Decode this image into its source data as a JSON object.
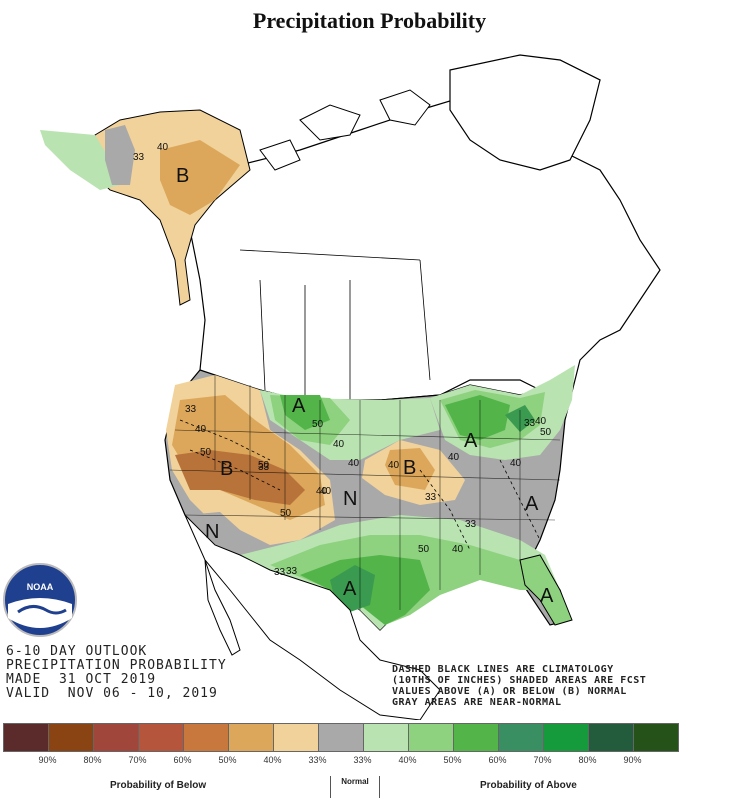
{
  "title": "Precipitation Probability",
  "outlook": {
    "line1": "6-10 DAY OUTLOOK",
    "line2": "PRECIPITATION PROBABILITY",
    "line3": "MADE  31 OCT 2019",
    "line4": "VALID  NOV 06 - 10, 2019"
  },
  "note": {
    "line1": "DASHED BLACK LINES ARE CLIMATOLOGY",
    "line2": "(10THS OF INCHES) SHADED AREAS ARE FCST",
    "line3": "VALUES ABOVE (A) OR BELOW (B) NORMAL",
    "line4": "GRAY AREAS ARE NEAR-NORMAL"
  },
  "logo_text": "NOAA",
  "map": {
    "category_labels": [
      "B",
      "B",
      "B",
      "N",
      "N",
      "A",
      "A",
      "A",
      "A",
      "A"
    ],
    "contour_labels": [
      "33",
      "40",
      "33",
      "40",
      "50",
      "50",
      "40",
      "50",
      "40",
      "40",
      "33",
      "33",
      "33",
      "50",
      "40",
      "40",
      "33",
      "40",
      "33",
      "50",
      "33",
      "40",
      "50",
      "40",
      "40"
    ],
    "colors": {
      "below_33": "#f1d29b",
      "below_40": "#dca75a",
      "below_50": "#b7733a",
      "near_normal": "#a9a9a9",
      "above_33": "#b9e3b1",
      "above_40": "#8ed17f",
      "above_50": "#52b449",
      "above_60": "#3a9a4f",
      "land": "#ffffff",
      "border": "#000000"
    }
  },
  "legend": {
    "swatches": [
      "#5b2a2a",
      "#8a4414",
      "#a0463a",
      "#b5553c",
      "#c8773d",
      "#dca75a",
      "#f1d29b",
      "#a9a9a9",
      "#b9e3b1",
      "#8ed17f",
      "#52b449",
      "#3a8f62",
      "#159a3c",
      "#235c3c",
      "#245218"
    ],
    "ticks": [
      "90%",
      "80%",
      "70%",
      "60%",
      "50%",
      "40%",
      "33%",
      "33%",
      "40%",
      "50%",
      "60%",
      "70%",
      "80%",
      "90%"
    ],
    "below_label": "Probability of Below",
    "normal_label": "Normal",
    "above_label": "Probability of Above"
  }
}
